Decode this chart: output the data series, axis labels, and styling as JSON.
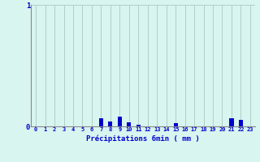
{
  "hours": [
    0,
    1,
    2,
    3,
    4,
    5,
    6,
    7,
    8,
    9,
    10,
    11,
    12,
    13,
    14,
    15,
    16,
    17,
    18,
    19,
    20,
    21,
    22,
    23
  ],
  "values": [
    0,
    0,
    0,
    0,
    0,
    0,
    0,
    0.07,
    0.04,
    0.08,
    0.035,
    0.015,
    0,
    0,
    0,
    0.025,
    0,
    0,
    0,
    0,
    0,
    0.07,
    0.055,
    0
  ],
  "bar_color": "#0000cc",
  "bg_color": "#d8f5f0",
  "grid_color": "#b0cfc8",
  "axis_color": "#888888",
  "text_color": "#0000cc",
  "xlabel": "Précipitations 6min ( mm )",
  "ylim": [
    0,
    1.0
  ],
  "ytick_vals": [
    0,
    1
  ],
  "xlim": [
    -0.5,
    23.5
  ],
  "bar_width": 0.45
}
